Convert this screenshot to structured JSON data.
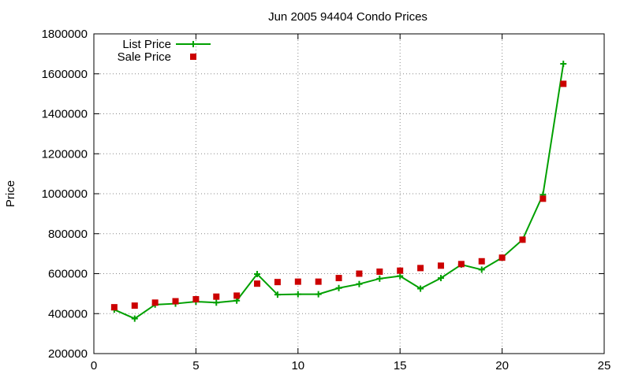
{
  "chart_data": {
    "type": "line",
    "title": "Jun 2005 94404 Condo Prices",
    "xlabel": "",
    "ylabel": "Price",
    "xlim": [
      0,
      25
    ],
    "ylim": [
      200000,
      1800000
    ],
    "xticks": [
      0,
      5,
      10,
      15,
      20,
      25
    ],
    "yticks": [
      200000,
      400000,
      600000,
      800000,
      1000000,
      1200000,
      1400000,
      1600000,
      1800000
    ],
    "grid": true,
    "legend_position": "top-left",
    "series": [
      {
        "name": "List Price",
        "style": "line+cross",
        "color": "#00a000",
        "x": [
          1,
          2,
          3,
          4,
          5,
          6,
          7,
          8,
          9,
          10,
          11,
          12,
          13,
          14,
          15,
          16,
          17,
          18,
          19,
          20,
          21,
          22,
          23
        ],
        "y": [
          420000,
          375000,
          445000,
          450000,
          460000,
          455000,
          465000,
          598000,
          495000,
          497000,
          497000,
          528000,
          548000,
          575000,
          588000,
          525000,
          578000,
          645000,
          620000,
          680000,
          770000,
          995000,
          1650000
        ]
      },
      {
        "name": "Sale Price",
        "style": "square",
        "color": "#cc0000",
        "x": [
          1,
          2,
          3,
          4,
          5,
          6,
          7,
          8,
          9,
          10,
          11,
          12,
          13,
          14,
          15,
          16,
          17,
          18,
          19,
          20,
          21,
          22,
          23
        ],
        "y": [
          432000,
          440000,
          455000,
          462000,
          472000,
          485000,
          490000,
          550000,
          558000,
          560000,
          560000,
          578000,
          600000,
          610000,
          615000,
          628000,
          640000,
          648000,
          662000,
          680000,
          770000,
          975000,
          1550000
        ]
      }
    ]
  }
}
